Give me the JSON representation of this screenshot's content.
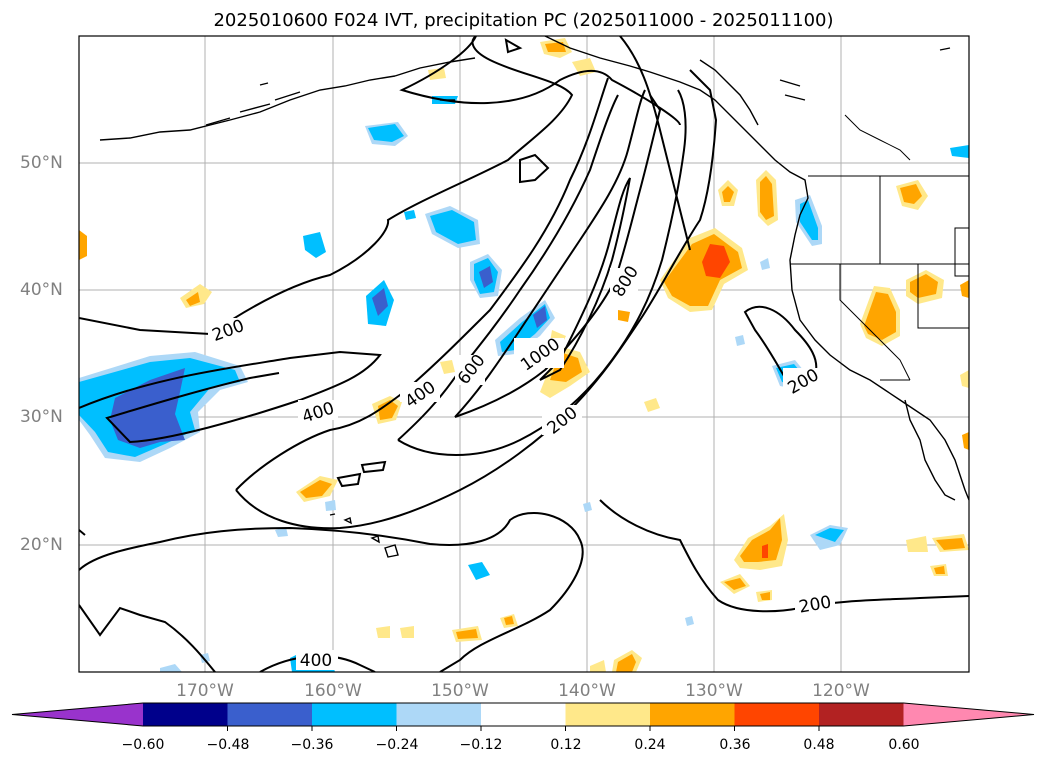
{
  "title": "2025010600 F024 IVT, precipitation PC (2025011000 - 2025011100)",
  "lat_labels": [
    "50°N",
    "40°N",
    "30°N",
    "20°N"
  ],
  "lon_labels": [
    "170°W",
    "160°W",
    "150°W",
    "140°W",
    "130°W",
    "120°W"
  ],
  "contour_labels": [
    "200",
    "400",
    "400",
    "600",
    "800",
    "1000",
    "200",
    "200",
    "200",
    "400"
  ],
  "colorbar": {
    "colors": [
      "#9933cc",
      "#00008b",
      "#3a5fcd",
      "#00bfff",
      "#add8f7",
      "#ffffff",
      "#ffe88a",
      "#ffa500",
      "#ff4500",
      "#b22222",
      "#ff88b0"
    ],
    "tick_labels": [
      "−0.60",
      "−0.48",
      "−0.36",
      "−0.24",
      "−0.12",
      "0.12",
      "0.24",
      "0.36",
      "0.48",
      "0.60"
    ]
  }
}
